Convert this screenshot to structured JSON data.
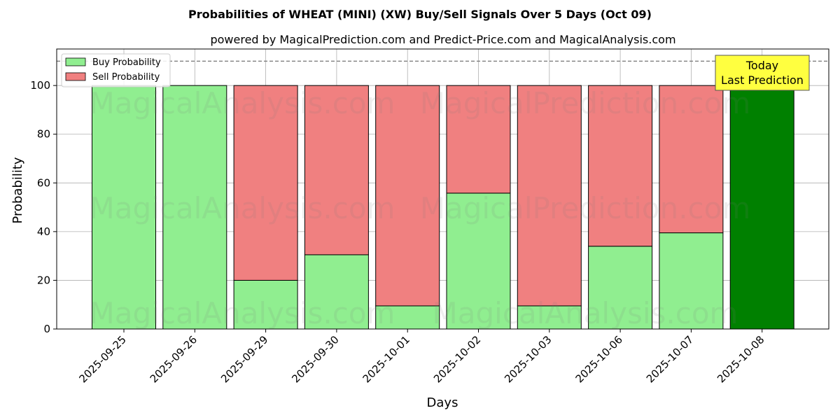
{
  "chart_data": {
    "type": "bar",
    "stacked": true,
    "title": "Probabilities of WHEAT (MINI) (XW) Buy/Sell Signals Over 5 Days (Oct 09)",
    "subtitle": "powered by MagicalPrediction.com and Predict-Price.com and MagicalAnalysis.com",
    "xlabel": "Days",
    "ylabel": "Probability",
    "ylim": [
      0,
      115
    ],
    "yticks": [
      0,
      20,
      40,
      60,
      80,
      100
    ],
    "reference_line": 110,
    "grid": true,
    "legend_position": "top-left",
    "categories": [
      "2025-09-25",
      "2025-09-26",
      "2025-09-29",
      "2025-09-30",
      "2025-10-01",
      "2025-10-02",
      "2025-10-03",
      "2025-10-06",
      "2025-10-07",
      "2025-10-08"
    ],
    "series": [
      {
        "name": "Buy Probability",
        "color": "#90ee90",
        "values": [
          100,
          100,
          20,
          30.5,
          9.5,
          55.8,
          9.5,
          34,
          39.5,
          100
        ]
      },
      {
        "name": "Sell Probability",
        "color": "#f08080",
        "values": [
          0,
          0,
          80,
          69.5,
          90.5,
          44.2,
          90.5,
          66,
          60.5,
          0
        ]
      }
    ],
    "highlight": {
      "category": "2025-10-08",
      "color": "#008000"
    },
    "annotation": {
      "line1": "Today",
      "line2": "Last Prediction",
      "bg_color": "#ffff40"
    },
    "watermarks": [
      "MagicalAnalysis.com",
      "MagicalPrediction.com"
    ]
  }
}
